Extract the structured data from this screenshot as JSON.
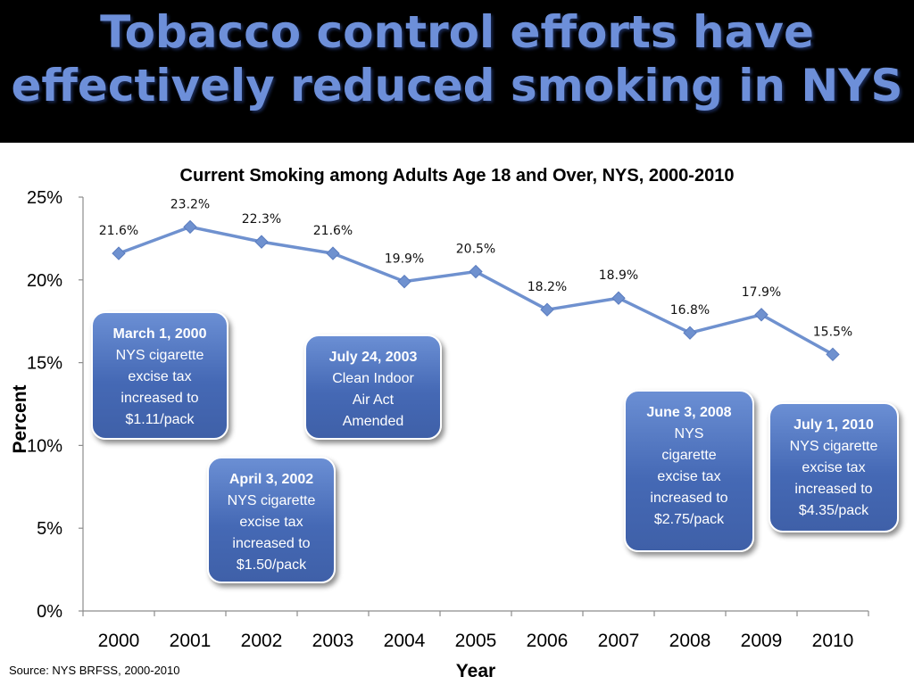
{
  "slide": {
    "title_line1": "Tobacco control efforts have",
    "title_line2": "effectively reduced smoking in NYS",
    "source": "Source: NYS BRFSS, 2000-2010"
  },
  "chart_data": {
    "type": "line",
    "title": "Current Smoking among Adults Age 18 and Over, NYS, 2000-2010",
    "xlabel": "Year",
    "ylabel": "Percent",
    "x": [
      "2000",
      "2001",
      "2002",
      "2003",
      "2004",
      "2005",
      "2006",
      "2007",
      "2008",
      "2009",
      "2010"
    ],
    "values": [
      21.6,
      23.2,
      22.3,
      21.6,
      19.9,
      20.5,
      18.2,
      18.9,
      16.8,
      17.9,
      15.5
    ],
    "data_labels": [
      "21.6%",
      "23.2%",
      "22.3%",
      "21.6%",
      "19.9%",
      "20.5%",
      "18.2%",
      "18.9%",
      "16.8%",
      "17.9%",
      "15.5%"
    ],
    "y_ticks": [
      "0%",
      "5%",
      "10%",
      "15%",
      "20%",
      "25%"
    ],
    "ylim": [
      0,
      25
    ],
    "grid": false,
    "line_color": "#6f91cf",
    "marker": "diamond"
  },
  "callouts": [
    {
      "date": "March 1, 2000",
      "body": "NYS cigarette\nexcise tax\nincreased to\n$1.11/pack"
    },
    {
      "date": "April 3, 2002",
      "body": "NYS cigarette\nexcise tax\nincreased to\n$1.50/pack"
    },
    {
      "date": "July 24, 2003",
      "body": "Clean Indoor\nAir Act\nAmended"
    },
    {
      "date": "June 3, 2008",
      "body": "NYS\ncigarette\nexcise tax\nincreased to\n$2.75/pack"
    },
    {
      "date": "July 1, 2010",
      "body": "NYS cigarette\nexcise tax\nincreased to\n$4.35/pack"
    }
  ],
  "colors": {
    "banner_background": "#000000",
    "title_text": "#6d8fd9",
    "callout_fill": "#4a6fbd",
    "line": "#6f91cf"
  }
}
